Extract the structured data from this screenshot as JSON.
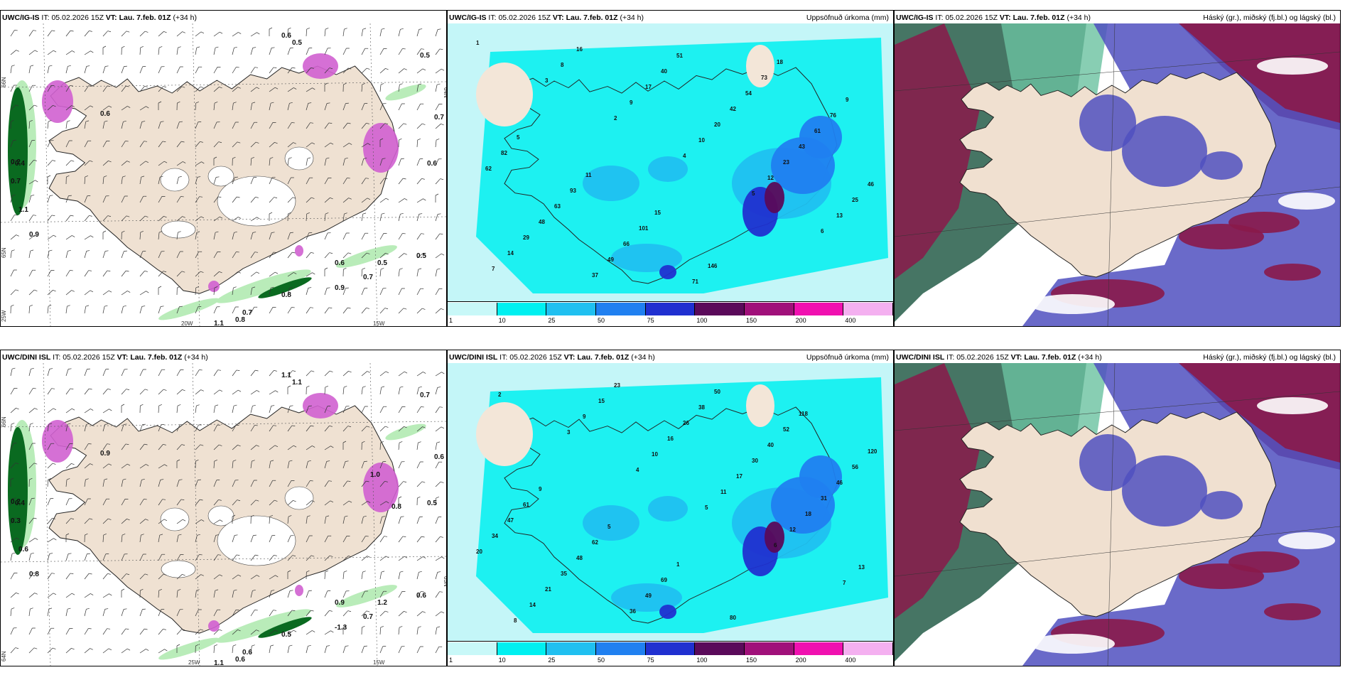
{
  "header_prefix": {
    "it": "IT:",
    "vt": "VT:"
  },
  "rows": [
    {
      "model": "UWC/IG-IS",
      "init_time": "05.02.2026 15Z",
      "valid_time": "Lau. 7.feb. 01Z",
      "lead": "(+34 h)",
      "map_values": [
        "0.6",
        "0.5",
        "0.5",
        "0.7",
        "0.6",
        "0.4",
        "0.2",
        "0.7",
        "1.1",
        "0.5",
        "0.6",
        "0.7",
        "0.5",
        "0.8",
        "0.9",
        "0.8",
        "0.7",
        "1.1",
        "0.9",
        "0.6"
      ],
      "precip_values": [
        "1",
        "3",
        "2",
        "4",
        "5",
        "6",
        "7",
        "8",
        "9",
        "10",
        "12",
        "13",
        "14",
        "16",
        "17",
        "20",
        "23",
        "25",
        "29",
        "37",
        "40",
        "42",
        "43",
        "46",
        "48",
        "49",
        "51",
        "54",
        "61",
        "62",
        "63",
        "66",
        "71",
        "73",
        "76",
        "82",
        "93",
        "101",
        "146",
        "18",
        "9",
        "5",
        "11",
        "15"
      ],
      "axis_labels": [
        "66N",
        "65N",
        "64N",
        "25W",
        "20W",
        "15W"
      ]
    },
    {
      "model": "UWC/DINI ISL",
      "init_time": "05.02.2026 15Z",
      "valid_time": "Lau. 7.feb. 01Z",
      "lead": "(+34 h)",
      "map_values": [
        "1.1",
        "1.1",
        "0.7",
        "0.6",
        "0.5",
        "0.4",
        "0.2",
        "0.3",
        "0.6",
        "1.2",
        "0.9",
        "0.7",
        "0.6",
        "0.5",
        "-1.3",
        "0.6",
        "0.6",
        "1.1",
        "0.8",
        "0.9",
        "1.0",
        "0.8"
      ],
      "precip_values": [
        "2",
        "3",
        "4",
        "5",
        "6",
        "7",
        "8",
        "9",
        "10",
        "11",
        "12",
        "13",
        "14",
        "15",
        "16",
        "17",
        "18",
        "20",
        "21",
        "23",
        "26",
        "30",
        "31",
        "34",
        "35",
        "36",
        "38",
        "40",
        "46",
        "47",
        "48",
        "49",
        "50",
        "52",
        "56",
        "61",
        "62",
        "69",
        "80",
        "118",
        "120",
        "9",
        "5",
        "1"
      ],
      "axis_labels": [
        "66N",
        "65N",
        "64N",
        "25W",
        "15W"
      ]
    }
  ],
  "precip_panel": {
    "title": "Uppsöfnuð úrkoma (mm)",
    "legend": {
      "ticks": [
        "1",
        "10",
        "25",
        "50",
        "75",
        "100",
        "150",
        "200",
        "400"
      ],
      "colors": [
        "#c8f8f8",
        "#00f0f0",
        "#20c0f0",
        "#2080f0",
        "#2030d0",
        "#5a0a5a",
        "#a0107a",
        "#f010b0",
        "#f4b0f0"
      ]
    }
  },
  "cloud_panel": {
    "title": "Háský (gr.), miðský (fj.bl.) og lágský (bl.)",
    "colors": {
      "high": "#3c6e5c",
      "mid": "#8a1a4a",
      "low": "#5050c0",
      "land": "#f0e0d0"
    }
  },
  "colors": {
    "land": "#efe1d2",
    "sea": "#ffffff",
    "precip_sea": "#c4f6f8",
    "green_light": "#b9ecb9",
    "green_dark": "#0a6a20",
    "magenta": "#d060d0"
  }
}
